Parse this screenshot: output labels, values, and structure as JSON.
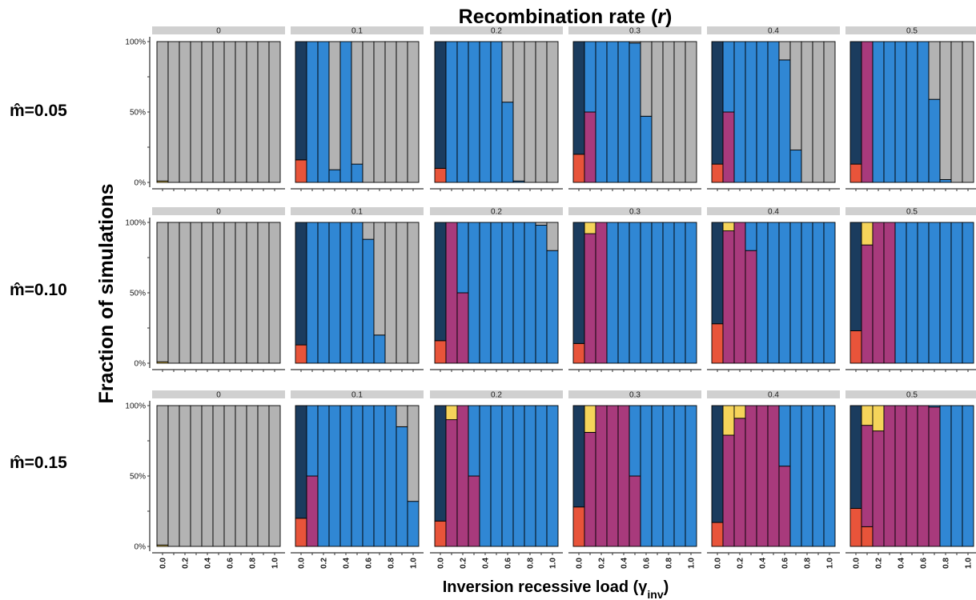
{
  "chart_data": {
    "type": "bar",
    "stacked": true,
    "title": "Recombination rate (r)",
    "xlabel": "Inversion recessive load",
    "xlabel_symbol": "γ",
    "xlabel_subscript": "inv",
    "ylabel": "Fraction of simulations",
    "x": [
      0.0,
      0.1,
      0.2,
      0.3,
      0.4,
      0.5,
      0.6,
      0.7,
      0.8,
      0.9,
      1.0
    ],
    "x_tick_labels": [
      "0.0",
      "0.2",
      "0.4",
      "0.6",
      "0.8",
      "1.0"
    ],
    "y_tick_labels": [
      "0%",
      "50%",
      "100%"
    ],
    "ylim": [
      0,
      1
    ],
    "legend": "none",
    "row_labels": [
      "m̂=0.05",
      "m̂=0.10",
      "m̂=0.15"
    ],
    "column_labels": [
      "0",
      "0.1",
      "0.2",
      "0.3",
      "0.4",
      "0.5"
    ],
    "stack_order": [
      "red",
      "purple",
      "yellow",
      "navy",
      "blue",
      "grey"
    ],
    "colors": {
      "red": "#e8543a",
      "purple": "#a83a7c",
      "yellow": "#f5d45a",
      "navy": "#1b3c5e",
      "blue": "#3087d4",
      "grey": "#b3b3b3",
      "strip": "#d0d0d0"
    },
    "facets": [
      {
        "row": 0,
        "col": 0,
        "bars": [
          {
            "yellow": 0.01,
            "grey": 0.99
          },
          {
            "grey": 1
          },
          {
            "grey": 1
          },
          {
            "grey": 1
          },
          {
            "grey": 1
          },
          {
            "grey": 1
          },
          {
            "grey": 1
          },
          {
            "grey": 1
          },
          {
            "grey": 1
          },
          {
            "grey": 1
          },
          {
            "grey": 1
          }
        ]
      },
      {
        "row": 0,
        "col": 1,
        "bars": [
          {
            "red": 0.16,
            "navy": 0.84
          },
          {
            "blue": 1
          },
          {
            "blue": 1
          },
          {
            "blue": 0.09,
            "grey": 0.91
          },
          {
            "blue": 1
          },
          {
            "blue": 0.13,
            "grey": 0.87
          },
          {
            "grey": 1
          },
          {
            "grey": 1
          },
          {
            "grey": 1
          },
          {
            "grey": 1
          },
          {
            "grey": 1
          }
        ]
      },
      {
        "row": 0,
        "col": 2,
        "bars": [
          {
            "red": 0.1,
            "navy": 0.9
          },
          {
            "blue": 1
          },
          {
            "blue": 1
          },
          {
            "blue": 1
          },
          {
            "blue": 1
          },
          {
            "blue": 1
          },
          {
            "blue": 0.57,
            "grey": 0.43
          },
          {
            "blue": 0.01,
            "grey": 0.99
          },
          {
            "grey": 1
          },
          {
            "grey": 1
          },
          {
            "grey": 1
          }
        ]
      },
      {
        "row": 0,
        "col": 3,
        "bars": [
          {
            "red": 0.2,
            "navy": 0.8
          },
          {
            "purple": 0.5,
            "blue": 0.5
          },
          {
            "blue": 1
          },
          {
            "blue": 1
          },
          {
            "blue": 1
          },
          {
            "blue": 0.99,
            "grey": 0.01
          },
          {
            "blue": 0.47,
            "grey": 0.53
          },
          {
            "grey": 1
          },
          {
            "grey": 1
          },
          {
            "grey": 1
          },
          {
            "grey": 1
          }
        ]
      },
      {
        "row": 0,
        "col": 4,
        "bars": [
          {
            "red": 0.13,
            "navy": 0.87
          },
          {
            "purple": 0.5,
            "blue": 0.5
          },
          {
            "blue": 1
          },
          {
            "blue": 1
          },
          {
            "blue": 1
          },
          {
            "blue": 1
          },
          {
            "blue": 0.87,
            "grey": 0.13
          },
          {
            "blue": 0.23,
            "grey": 0.77
          },
          {
            "grey": 1
          },
          {
            "grey": 1
          },
          {
            "grey": 1
          }
        ]
      },
      {
        "row": 0,
        "col": 5,
        "bars": [
          {
            "red": 0.13,
            "navy": 0.87
          },
          {
            "purple": 1
          },
          {
            "blue": 1
          },
          {
            "blue": 1
          },
          {
            "blue": 1
          },
          {
            "blue": 1
          },
          {
            "blue": 1
          },
          {
            "blue": 0.59,
            "grey": 0.41
          },
          {
            "blue": 0.02,
            "grey": 0.98
          },
          {
            "grey": 1
          },
          {
            "grey": 1
          }
        ]
      },
      {
        "row": 1,
        "col": 0,
        "bars": [
          {
            "yellow": 0.01,
            "grey": 0.99
          },
          {
            "grey": 1
          },
          {
            "grey": 1
          },
          {
            "grey": 1
          },
          {
            "grey": 1
          },
          {
            "grey": 1
          },
          {
            "grey": 1
          },
          {
            "grey": 1
          },
          {
            "grey": 1
          },
          {
            "grey": 1
          },
          {
            "grey": 1
          }
        ]
      },
      {
        "row": 1,
        "col": 1,
        "bars": [
          {
            "red": 0.13,
            "navy": 0.87
          },
          {
            "blue": 1
          },
          {
            "blue": 1
          },
          {
            "blue": 1
          },
          {
            "blue": 1
          },
          {
            "blue": 1
          },
          {
            "blue": 0.88,
            "grey": 0.12
          },
          {
            "blue": 0.2,
            "grey": 0.8
          },
          {
            "grey": 1
          },
          {
            "grey": 1
          },
          {
            "grey": 1
          }
        ]
      },
      {
        "row": 1,
        "col": 2,
        "bars": [
          {
            "red": 0.16,
            "navy": 0.84
          },
          {
            "purple": 1
          },
          {
            "purple": 0.5,
            "blue": 0.5
          },
          {
            "blue": 1
          },
          {
            "blue": 1
          },
          {
            "blue": 1
          },
          {
            "blue": 1
          },
          {
            "blue": 1
          },
          {
            "blue": 1
          },
          {
            "blue": 0.98,
            "grey": 0.02
          },
          {
            "blue": 0.8,
            "grey": 0.2
          }
        ]
      },
      {
        "row": 1,
        "col": 3,
        "bars": [
          {
            "red": 0.14,
            "navy": 0.86
          },
          {
            "purple": 0.92,
            "yellow": 0.08
          },
          {
            "purple": 1
          },
          {
            "blue": 1
          },
          {
            "blue": 1
          },
          {
            "blue": 1
          },
          {
            "blue": 1
          },
          {
            "blue": 1
          },
          {
            "blue": 1
          },
          {
            "blue": 1
          },
          {
            "blue": 1
          }
        ]
      },
      {
        "row": 1,
        "col": 4,
        "bars": [
          {
            "red": 0.28,
            "navy": 0.72
          },
          {
            "purple": 0.94,
            "yellow": 0.06
          },
          {
            "purple": 1
          },
          {
            "purple": 0.8,
            "blue": 0.2
          },
          {
            "blue": 1
          },
          {
            "blue": 1
          },
          {
            "blue": 1
          },
          {
            "blue": 1
          },
          {
            "blue": 1
          },
          {
            "blue": 1
          },
          {
            "blue": 1
          }
        ]
      },
      {
        "row": 1,
        "col": 5,
        "bars": [
          {
            "red": 0.23,
            "navy": 0.77
          },
          {
            "purple": 0.84,
            "yellow": 0.16
          },
          {
            "purple": 1
          },
          {
            "purple": 1
          },
          {
            "blue": 1
          },
          {
            "blue": 1
          },
          {
            "blue": 1
          },
          {
            "blue": 1
          },
          {
            "blue": 1
          },
          {
            "blue": 1
          },
          {
            "blue": 1
          }
        ]
      },
      {
        "row": 2,
        "col": 0,
        "bars": [
          {
            "yellow": 0.01,
            "grey": 0.99
          },
          {
            "grey": 1
          },
          {
            "grey": 1
          },
          {
            "grey": 1
          },
          {
            "grey": 1
          },
          {
            "grey": 1
          },
          {
            "grey": 1
          },
          {
            "grey": 1
          },
          {
            "grey": 1
          },
          {
            "grey": 1
          },
          {
            "grey": 1
          }
        ]
      },
      {
        "row": 2,
        "col": 1,
        "bars": [
          {
            "red": 0.2,
            "navy": 0.8
          },
          {
            "purple": 0.5,
            "blue": 0.5
          },
          {
            "blue": 1
          },
          {
            "blue": 1
          },
          {
            "blue": 1
          },
          {
            "blue": 1
          },
          {
            "blue": 1
          },
          {
            "blue": 1
          },
          {
            "blue": 1
          },
          {
            "blue": 0.85,
            "grey": 0.15
          },
          {
            "blue": 0.32,
            "grey": 0.68
          }
        ]
      },
      {
        "row": 2,
        "col": 2,
        "bars": [
          {
            "red": 0.18,
            "navy": 0.82
          },
          {
            "purple": 0.9,
            "yellow": 0.1
          },
          {
            "purple": 1
          },
          {
            "purple": 0.5,
            "blue": 0.5
          },
          {
            "blue": 1
          },
          {
            "blue": 1
          },
          {
            "blue": 1
          },
          {
            "blue": 1
          },
          {
            "blue": 1
          },
          {
            "blue": 1
          },
          {
            "blue": 1
          }
        ]
      },
      {
        "row": 2,
        "col": 3,
        "bars": [
          {
            "red": 0.28,
            "navy": 0.72
          },
          {
            "purple": 0.81,
            "yellow": 0.19
          },
          {
            "purple": 1
          },
          {
            "purple": 1
          },
          {
            "purple": 1
          },
          {
            "purple": 0.5,
            "blue": 0.5
          },
          {
            "blue": 1
          },
          {
            "blue": 1
          },
          {
            "blue": 1
          },
          {
            "blue": 1
          },
          {
            "blue": 1
          }
        ]
      },
      {
        "row": 2,
        "col": 4,
        "bars": [
          {
            "red": 0.17,
            "navy": 0.83
          },
          {
            "purple": 0.79,
            "yellow": 0.21
          },
          {
            "purple": 0.91,
            "yellow": 0.09
          },
          {
            "purple": 1
          },
          {
            "purple": 1
          },
          {
            "purple": 1
          },
          {
            "purple": 0.57,
            "blue": 0.43
          },
          {
            "blue": 1
          },
          {
            "blue": 1
          },
          {
            "blue": 1
          },
          {
            "blue": 1
          }
        ]
      },
      {
        "row": 2,
        "col": 5,
        "bars": [
          {
            "red": 0.27,
            "navy": 0.73
          },
          {
            "red": 0.14,
            "purple": 0.72,
            "yellow": 0.14
          },
          {
            "purple": 0.82,
            "yellow": 0.18
          },
          {
            "purple": 1
          },
          {
            "purple": 1
          },
          {
            "purple": 1
          },
          {
            "purple": 1
          },
          {
            "purple": 0.99,
            "blue": 0.01
          },
          {
            "blue": 1
          },
          {
            "blue": 1
          },
          {
            "blue": 1
          }
        ]
      }
    ]
  }
}
